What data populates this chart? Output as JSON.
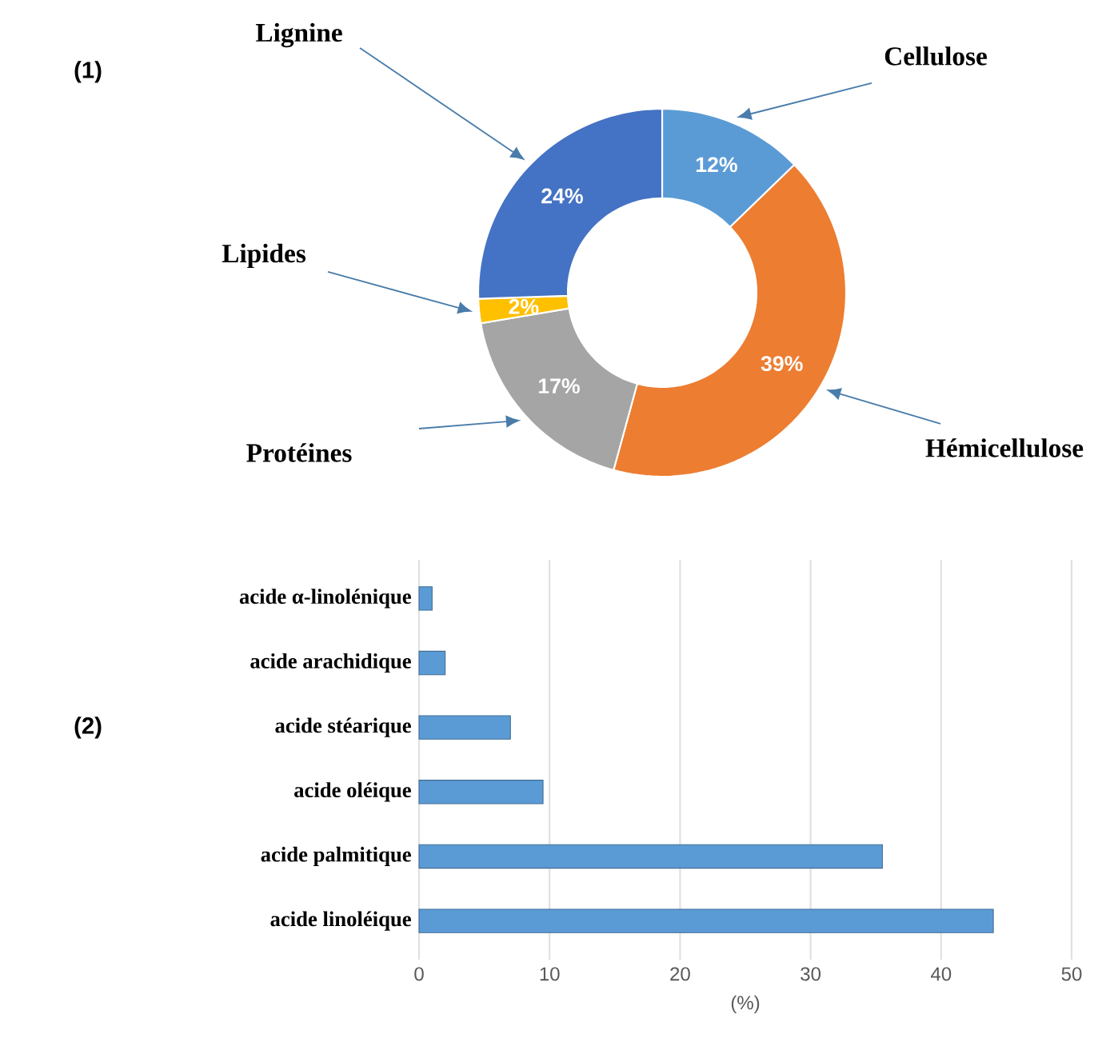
{
  "chart_data": [
    {
      "type": "donut",
      "categories": [
        "Cellulose",
        "Hémicellulose",
        "Protéines",
        "Lipides",
        "Lignine"
      ],
      "values": [
        12,
        39,
        17,
        2,
        24
      ],
      "colors": [
        "#5b9bd5",
        "#ed7d31",
        "#a5a5a5",
        "#ffc000",
        "#4472c4"
      ],
      "value_labels": [
        "12%",
        "39%",
        "17%",
        "2%",
        "24%"
      ],
      "annotations": [
        "(1)"
      ]
    },
    {
      "type": "bar",
      "orientation": "horizontal",
      "categories": [
        "acide α-linolénique",
        "acide arachidique",
        "acide stéarique",
        "acide oléique",
        "acide palmitique",
        "acide linoléique"
      ],
      "values": [
        1,
        2,
        7,
        9.5,
        35.5,
        44
      ],
      "color": "#5b9bd5",
      "xlabel": "(%)",
      "xlim": [
        0,
        50
      ],
      "xticks": [
        0,
        10,
        20,
        30,
        40,
        50
      ],
      "grid": "x",
      "annotations": [
        "(2)"
      ]
    }
  ]
}
